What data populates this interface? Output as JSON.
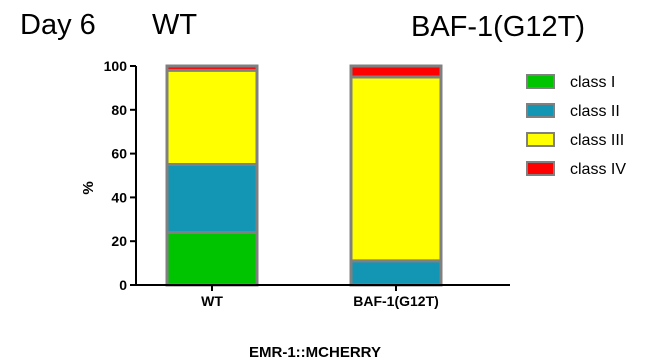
{
  "header": {
    "day_label": "Day 6",
    "wt_label": "WT",
    "mutant_label": "BAF-1(G12T)"
  },
  "chart_data": {
    "type": "bar",
    "stacked": true,
    "categories": [
      "WT",
      "BAF-1(G12T)"
    ],
    "series": [
      {
        "name": "class I",
        "color": "#00c400",
        "values": [
          24,
          0
        ]
      },
      {
        "name": "class II",
        "color": "#1396b3",
        "values": [
          31,
          11
        ]
      },
      {
        "name": "class III",
        "color": "#ffff00",
        "values": [
          43,
          84
        ]
      },
      {
        "name": "class IV",
        "color": "#ff0000",
        "values": [
          2,
          5
        ]
      }
    ],
    "xlabel": "EMR-1::MCHERRY",
    "ylabel": "%",
    "ylim": [
      0,
      100
    ],
    "yticks": [
      0,
      20,
      40,
      60,
      80,
      100
    ],
    "grid": false,
    "legend_position": "right",
    "bar_outline_color": "#808080"
  }
}
